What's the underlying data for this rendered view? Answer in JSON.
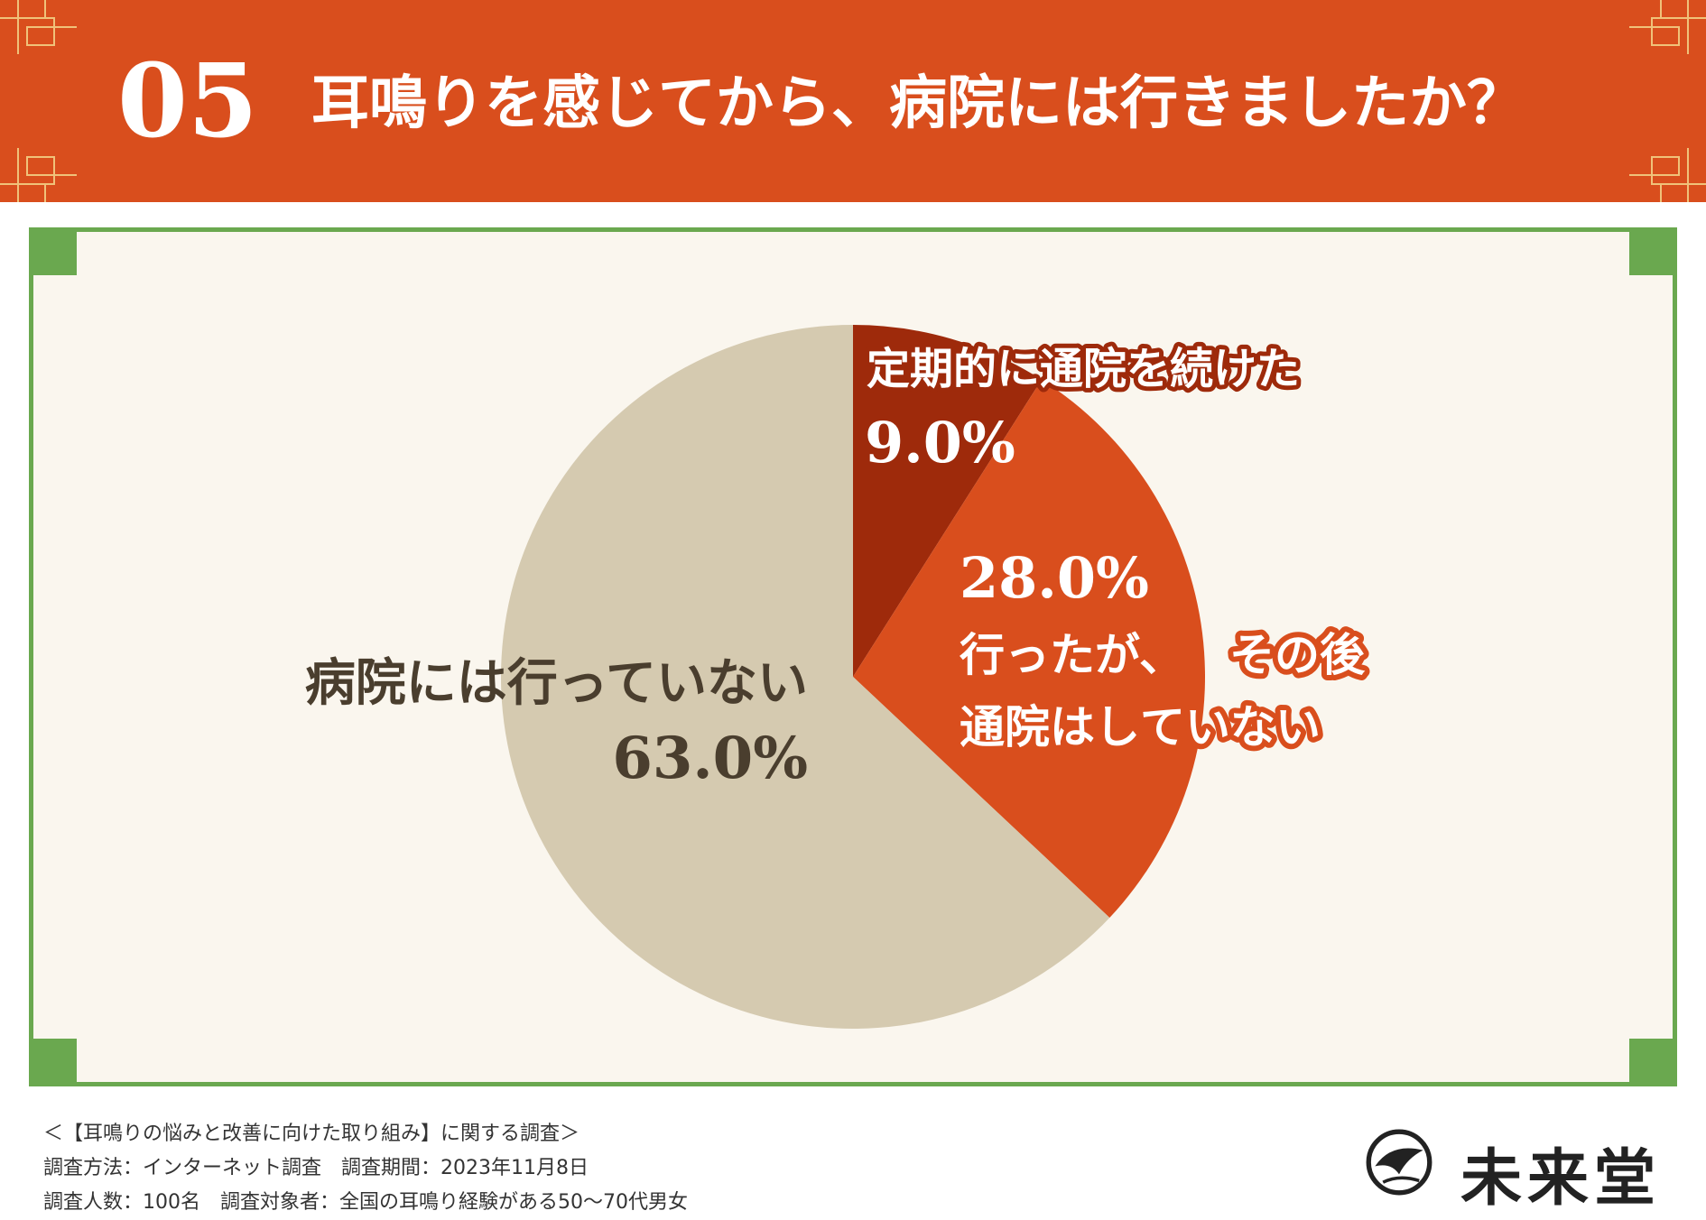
{
  "header": {
    "number": "05",
    "title": "耳鳴りを感じてから、病院には行きましたか？"
  },
  "colors": {
    "header_bg": "#d94e1d",
    "panel_border": "#6aa84f",
    "panel_bg": "#faf6ee"
  },
  "chart_data": {
    "type": "pie",
    "title": "耳鳴りを感じてから、病院には行きましたか？",
    "slices": [
      {
        "label": "定期的に通院を続けた",
        "value": 9.0,
        "display": "9.0%",
        "color": "#9e2a0b"
      },
      {
        "label": "行ったが、その後通院はしていない",
        "value": 28.0,
        "display": "28.0%",
        "color": "#d94e1d"
      },
      {
        "label": "病院には行っていない",
        "value": 63.0,
        "display": "63.0%",
        "color": "#d5cab0"
      }
    ],
    "start_angle": "12 o'clock",
    "direction": "clockwise"
  },
  "labels": {
    "slice1_text": "定期的に通院を続けた",
    "slice1_pct": "9.0%",
    "slice2_pct": "28.0%",
    "slice2_line1a": "行ったが、",
    "slice2_line1b": "その後",
    "slice2_line2a": "通院はし",
    "slice2_line2b": "ていない",
    "slice3_text": "病院には行っていない",
    "slice3_pct": "63.0%"
  },
  "footer": {
    "line1": "＜【耳鳴りの悩みと改善に向けた取り組み】に関する調査＞",
    "line2": "調査方法：インターネット調査　調査期間：2023年11月8日",
    "line3": "調査人数：100名　調査対象者：全国の耳鳴り経験がある50～70代男女"
  },
  "logo": {
    "text": "未来堂",
    "icon": "crane-emblem-icon"
  }
}
